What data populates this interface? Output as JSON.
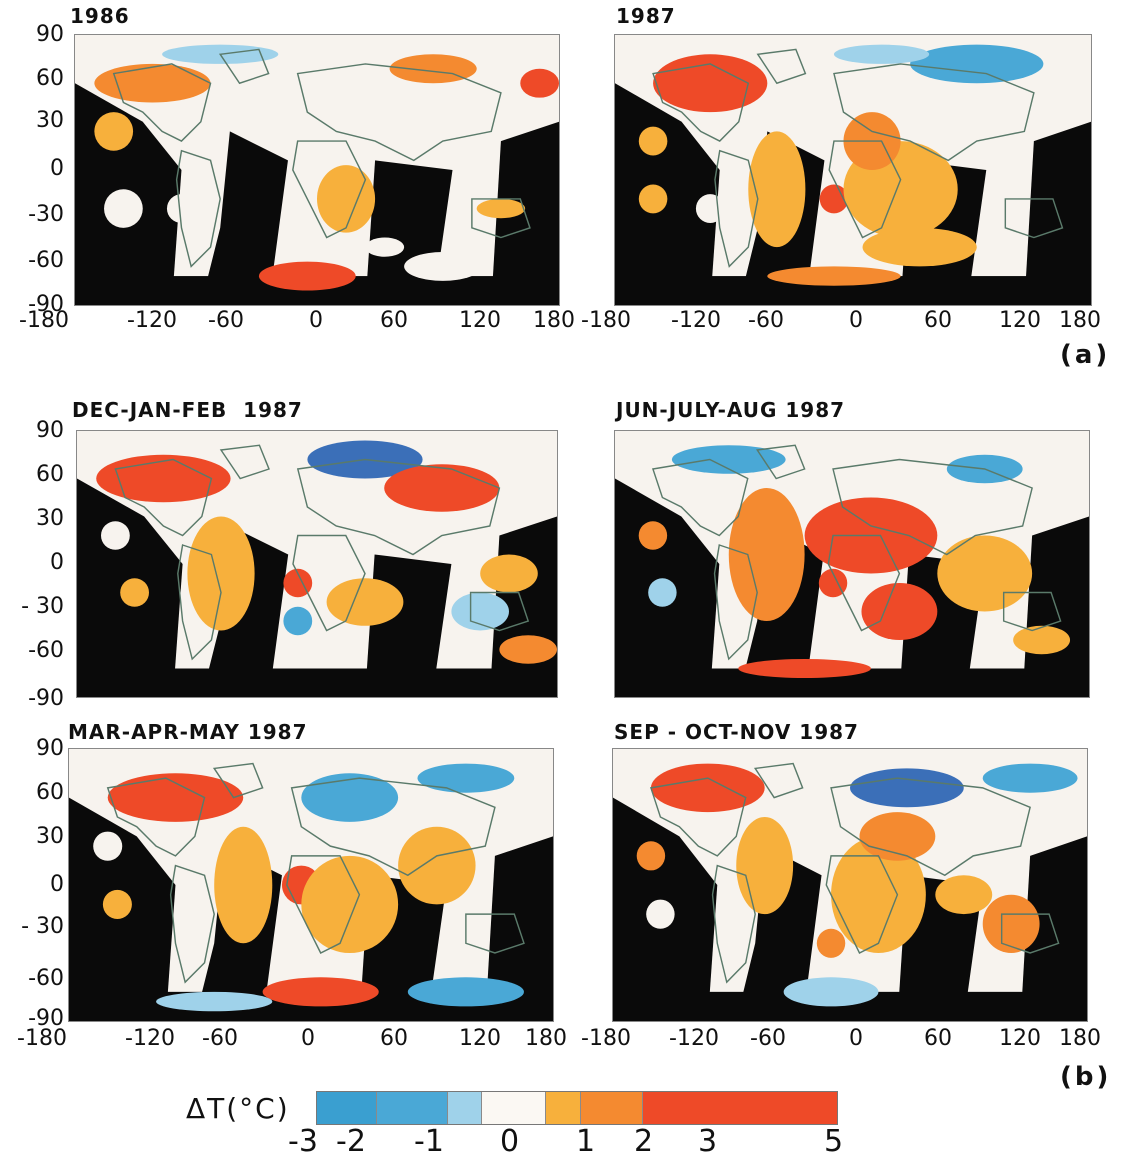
{
  "panel_label_a": "(a)",
  "panel_label_b": "(b)",
  "panels": [
    {
      "id": "p1986",
      "title": "1986"
    },
    {
      "id": "p1987",
      "title": "1987"
    },
    {
      "id": "pdjf",
      "title": "DEC-JAN-FEB  1987"
    },
    {
      "id": "pjja",
      "title": "JUN-JULY-AUG 1987"
    },
    {
      "id": "pmam",
      "title": "MAR-APR-MAY 1987"
    },
    {
      "id": "pson",
      "title": "SEP - OCT-NOV 1987"
    }
  ],
  "y_ticks_a": [
    "90",
    "60",
    "30",
    "0",
    "-30",
    "-60",
    "-90"
  ],
  "y_ticks_b": [
    "90",
    "60",
    "30",
    "0",
    "- 30",
    "-60",
    "-90"
  ],
  "x_ticks_left": [
    "-180",
    "-120",
    "-60",
    "0",
    "60",
    "120",
    "180"
  ],
  "x_ticks_right": [
    "-180",
    "-120",
    "-60",
    "0",
    "60",
    "120",
    "180"
  ],
  "legend": {
    "title": "ΔT(°C)",
    "ticks": [
      "-3",
      "-2",
      "-1",
      "0",
      "1",
      "2",
      "3",
      "5"
    ],
    "bins": [
      {
        "from": -3,
        "to": -2,
        "color": "#3a9fd0"
      },
      {
        "from": -2,
        "to": -1,
        "color": "#4aa8d6"
      },
      {
        "from": -1,
        "to": -0.5,
        "color": "#9fd2ea"
      },
      {
        "from": -0.5,
        "to": 0.5,
        "color": "#fbf8f3"
      },
      {
        "from": 0.5,
        "to": 1,
        "color": "#f7b03c"
      },
      {
        "from": 1,
        "to": 2,
        "color": "#f48a30"
      },
      {
        "from": 2,
        "to": 5,
        "color": "#ee4a28"
      }
    ]
  },
  "colors": {
    "no_data": "#0a0a0a",
    "neutral": "#f7f3ee",
    "warm1": "#f7b03c",
    "warm2": "#f48a30",
    "warm3": "#ee4a28",
    "cool1": "#9fd2ea",
    "cool2": "#4aa8d6",
    "cool3": "#3b6fb8",
    "coast": "#5a7a6a"
  }
}
